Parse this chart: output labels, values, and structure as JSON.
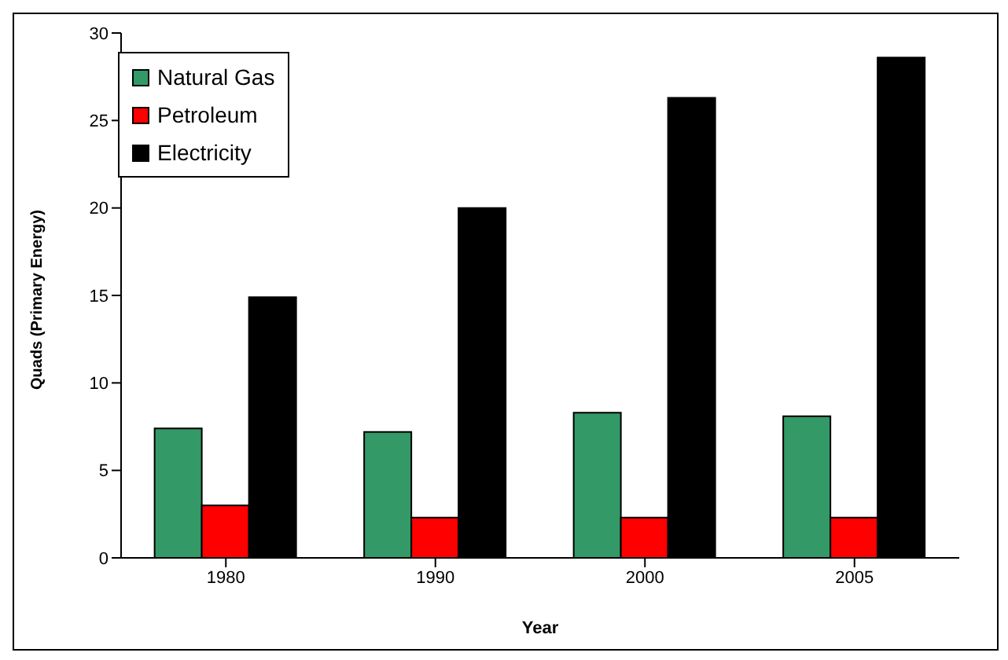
{
  "chart_data": {
    "type": "bar",
    "xlabel": "Year",
    "ylabel": "Quads (Primary Energy)",
    "categories": [
      "1980",
      "1990",
      "2000",
      "2005"
    ],
    "series": [
      {
        "name": "Natural Gas",
        "color": "#339966",
        "values": [
          7.4,
          7.2,
          8.3,
          8.1
        ]
      },
      {
        "name": "Petroleum",
        "color": "#ff0000",
        "values": [
          3.0,
          2.3,
          2.3,
          2.3
        ]
      },
      {
        "name": "Electricity",
        "color": "#000000",
        "values": [
          14.9,
          20.0,
          26.3,
          28.6
        ]
      }
    ],
    "ylim": [
      0,
      30
    ],
    "yticks": [
      0,
      5,
      10,
      15,
      20,
      25,
      30
    ],
    "grid": false,
    "legend": "top left"
  }
}
